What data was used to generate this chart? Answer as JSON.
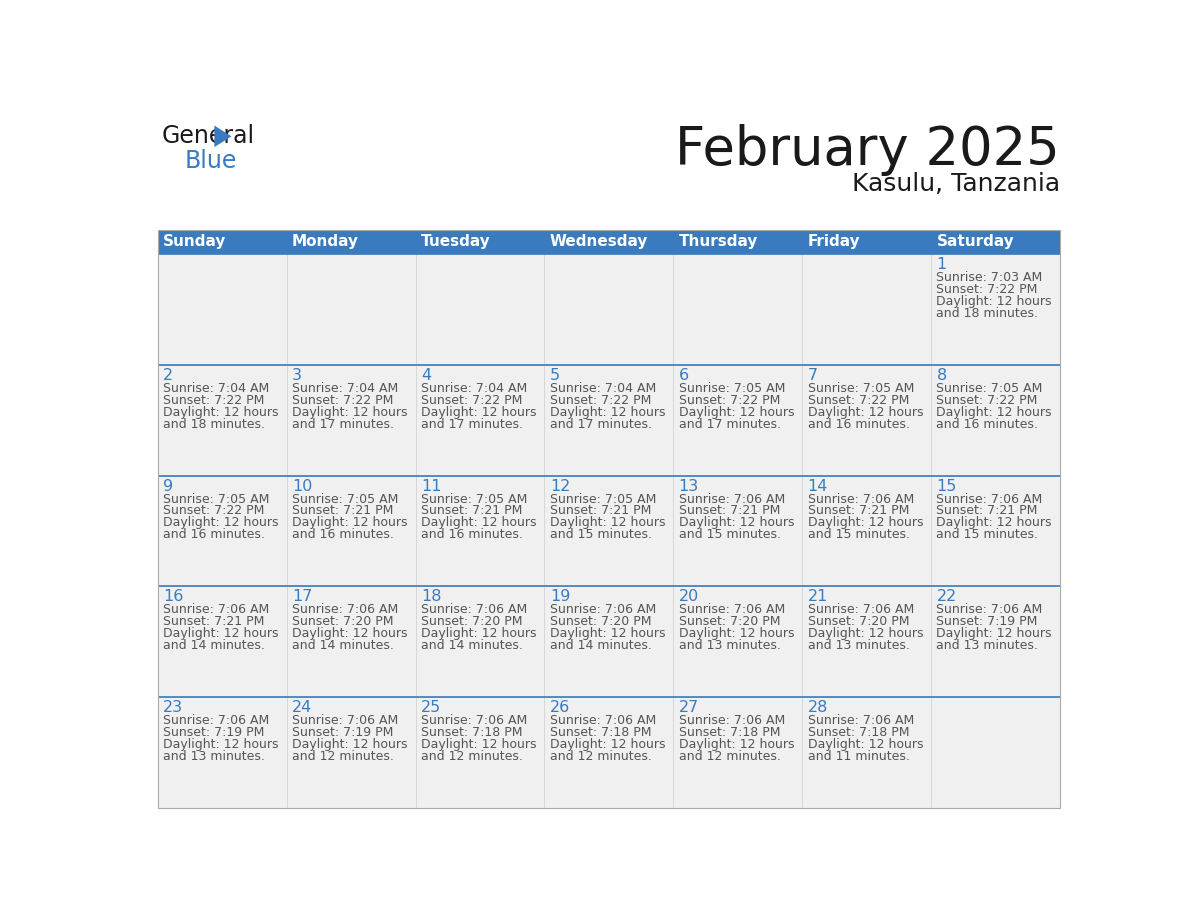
{
  "title": "February 2025",
  "subtitle": "Kasulu, Tanzania",
  "days_of_week": [
    "Sunday",
    "Monday",
    "Tuesday",
    "Wednesday",
    "Thursday",
    "Friday",
    "Saturday"
  ],
  "header_bg": "#3a7bbf",
  "header_text": "#ffffff",
  "cell_bg_light": "#f0f0f0",
  "cell_bg_white": "#ffffff",
  "border_color": "#3a7bbf",
  "day_num_color": "#3a7bbf",
  "text_color": "#555555",
  "title_color": "#1a1a1a",
  "calendar_data": [
    [
      null,
      null,
      null,
      null,
      null,
      null,
      {
        "day": 1,
        "sunrise": "7:03 AM",
        "sunset": "7:22 PM",
        "daylight_line1": "Daylight: 12 hours",
        "daylight_line2": "and 18 minutes."
      }
    ],
    [
      {
        "day": 2,
        "sunrise": "7:04 AM",
        "sunset": "7:22 PM",
        "daylight_line1": "Daylight: 12 hours",
        "daylight_line2": "and 18 minutes."
      },
      {
        "day": 3,
        "sunrise": "7:04 AM",
        "sunset": "7:22 PM",
        "daylight_line1": "Daylight: 12 hours",
        "daylight_line2": "and 17 minutes."
      },
      {
        "day": 4,
        "sunrise": "7:04 AM",
        "sunset": "7:22 PM",
        "daylight_line1": "Daylight: 12 hours",
        "daylight_line2": "and 17 minutes."
      },
      {
        "day": 5,
        "sunrise": "7:04 AM",
        "sunset": "7:22 PM",
        "daylight_line1": "Daylight: 12 hours",
        "daylight_line2": "and 17 minutes."
      },
      {
        "day": 6,
        "sunrise": "7:05 AM",
        "sunset": "7:22 PM",
        "daylight_line1": "Daylight: 12 hours",
        "daylight_line2": "and 17 minutes."
      },
      {
        "day": 7,
        "sunrise": "7:05 AM",
        "sunset": "7:22 PM",
        "daylight_line1": "Daylight: 12 hours",
        "daylight_line2": "and 16 minutes."
      },
      {
        "day": 8,
        "sunrise": "7:05 AM",
        "sunset": "7:22 PM",
        "daylight_line1": "Daylight: 12 hours",
        "daylight_line2": "and 16 minutes."
      }
    ],
    [
      {
        "day": 9,
        "sunrise": "7:05 AM",
        "sunset": "7:22 PM",
        "daylight_line1": "Daylight: 12 hours",
        "daylight_line2": "and 16 minutes."
      },
      {
        "day": 10,
        "sunrise": "7:05 AM",
        "sunset": "7:21 PM",
        "daylight_line1": "Daylight: 12 hours",
        "daylight_line2": "and 16 minutes."
      },
      {
        "day": 11,
        "sunrise": "7:05 AM",
        "sunset": "7:21 PM",
        "daylight_line1": "Daylight: 12 hours",
        "daylight_line2": "and 16 minutes."
      },
      {
        "day": 12,
        "sunrise": "7:05 AM",
        "sunset": "7:21 PM",
        "daylight_line1": "Daylight: 12 hours",
        "daylight_line2": "and 15 minutes."
      },
      {
        "day": 13,
        "sunrise": "7:06 AM",
        "sunset": "7:21 PM",
        "daylight_line1": "Daylight: 12 hours",
        "daylight_line2": "and 15 minutes."
      },
      {
        "day": 14,
        "sunrise": "7:06 AM",
        "sunset": "7:21 PM",
        "daylight_line1": "Daylight: 12 hours",
        "daylight_line2": "and 15 minutes."
      },
      {
        "day": 15,
        "sunrise": "7:06 AM",
        "sunset": "7:21 PM",
        "daylight_line1": "Daylight: 12 hours",
        "daylight_line2": "and 15 minutes."
      }
    ],
    [
      {
        "day": 16,
        "sunrise": "7:06 AM",
        "sunset": "7:21 PM",
        "daylight_line1": "Daylight: 12 hours",
        "daylight_line2": "and 14 minutes."
      },
      {
        "day": 17,
        "sunrise": "7:06 AM",
        "sunset": "7:20 PM",
        "daylight_line1": "Daylight: 12 hours",
        "daylight_line2": "and 14 minutes."
      },
      {
        "day": 18,
        "sunrise": "7:06 AM",
        "sunset": "7:20 PM",
        "daylight_line1": "Daylight: 12 hours",
        "daylight_line2": "and 14 minutes."
      },
      {
        "day": 19,
        "sunrise": "7:06 AM",
        "sunset": "7:20 PM",
        "daylight_line1": "Daylight: 12 hours",
        "daylight_line2": "and 14 minutes."
      },
      {
        "day": 20,
        "sunrise": "7:06 AM",
        "sunset": "7:20 PM",
        "daylight_line1": "Daylight: 12 hours",
        "daylight_line2": "and 13 minutes."
      },
      {
        "day": 21,
        "sunrise": "7:06 AM",
        "sunset": "7:20 PM",
        "daylight_line1": "Daylight: 12 hours",
        "daylight_line2": "and 13 minutes."
      },
      {
        "day": 22,
        "sunrise": "7:06 AM",
        "sunset": "7:19 PM",
        "daylight_line1": "Daylight: 12 hours",
        "daylight_line2": "and 13 minutes."
      }
    ],
    [
      {
        "day": 23,
        "sunrise": "7:06 AM",
        "sunset": "7:19 PM",
        "daylight_line1": "Daylight: 12 hours",
        "daylight_line2": "and 13 minutes."
      },
      {
        "day": 24,
        "sunrise": "7:06 AM",
        "sunset": "7:19 PM",
        "daylight_line1": "Daylight: 12 hours",
        "daylight_line2": "and 12 minutes."
      },
      {
        "day": 25,
        "sunrise": "7:06 AM",
        "sunset": "7:18 PM",
        "daylight_line1": "Daylight: 12 hours",
        "daylight_line2": "and 12 minutes."
      },
      {
        "day": 26,
        "sunrise": "7:06 AM",
        "sunset": "7:18 PM",
        "daylight_line1": "Daylight: 12 hours",
        "daylight_line2": "and 12 minutes."
      },
      {
        "day": 27,
        "sunrise": "7:06 AM",
        "sunset": "7:18 PM",
        "daylight_line1": "Daylight: 12 hours",
        "daylight_line2": "and 12 minutes."
      },
      {
        "day": 28,
        "sunrise": "7:06 AM",
        "sunset": "7:18 PM",
        "daylight_line1": "Daylight: 12 hours",
        "daylight_line2": "and 11 minutes."
      },
      null
    ]
  ]
}
